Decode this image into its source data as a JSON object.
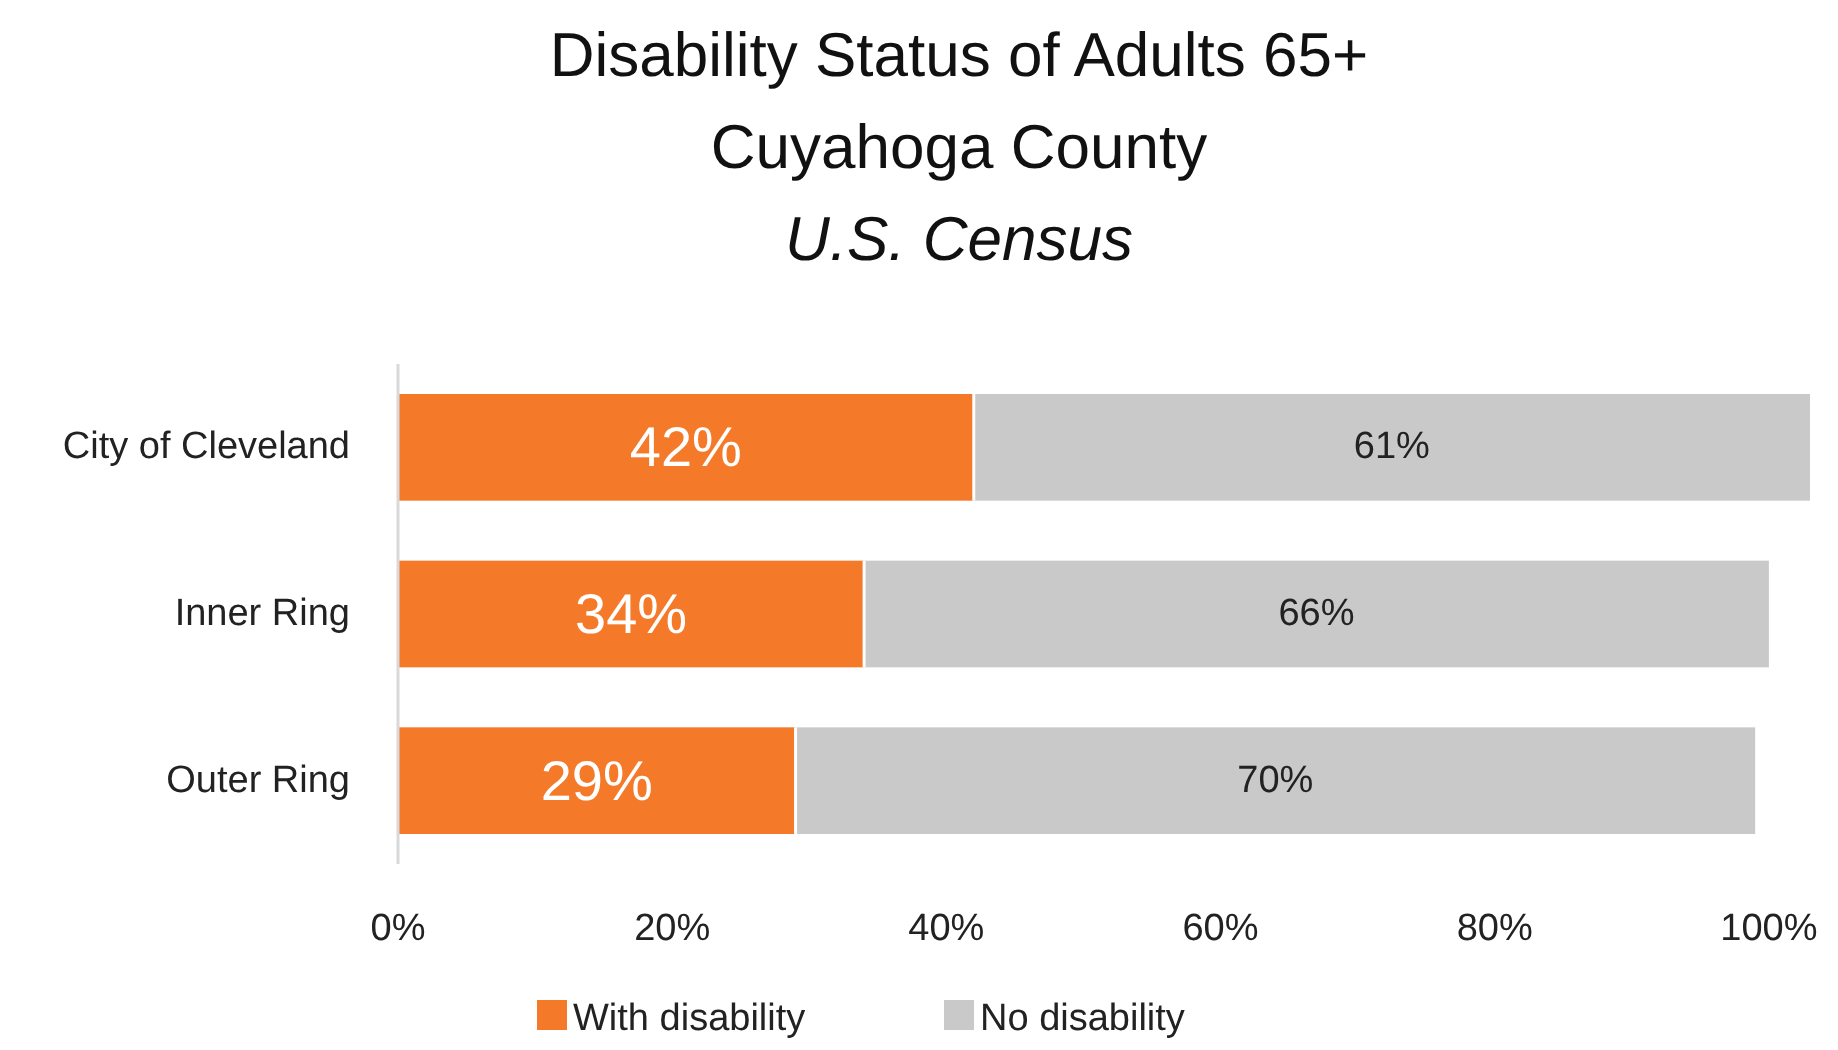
{
  "chart_data": {
    "type": "bar",
    "orientation": "horizontal",
    "stacked": true,
    "title": "Disability Status of Adults 65+",
    "subtitle": "Cuyahoga County",
    "annotations": [
      "U.S. Census"
    ],
    "categories": [
      "City of Cleveland",
      "Inner Ring",
      "Outer Ring"
    ],
    "series": [
      {
        "name": "With disability",
        "color": "#f47a2a",
        "values": [
          42,
          34,
          29
        ],
        "value_labels": [
          "42%",
          "34%",
          "29%"
        ]
      },
      {
        "name": "No disability",
        "color": "#c9c9c9",
        "values": [
          61,
          66,
          70
        ],
        "value_labels": [
          "61%",
          "66%",
          "70%"
        ]
      }
    ],
    "xlim": [
      0,
      103
    ],
    "xticks": [
      {
        "value": 0,
        "label": "0%"
      },
      {
        "value": 20,
        "label": "20%"
      },
      {
        "value": 40,
        "label": "40%"
      },
      {
        "value": 60,
        "label": "60%"
      },
      {
        "value": 80,
        "label": "80%"
      },
      {
        "value": 100,
        "label": "100%"
      }
    ],
    "grid": false,
    "legend": "bottom"
  }
}
